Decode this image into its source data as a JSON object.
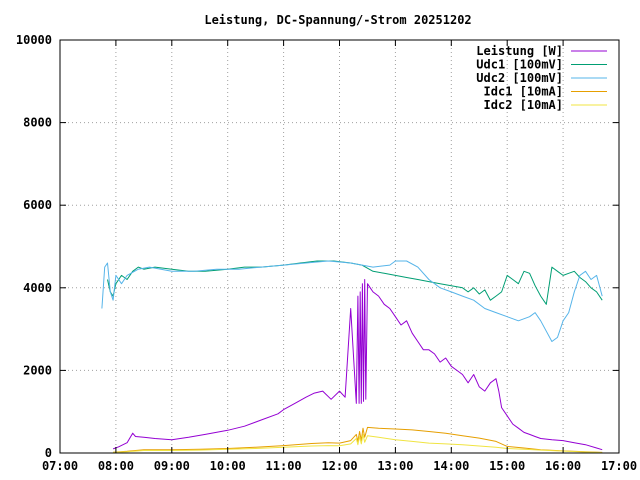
{
  "chart_data": {
    "type": "line",
    "title": "Leistung, DC-Spannung/-Strom 20251202",
    "xlabel": "",
    "ylabel": "",
    "x_unit": "time of day (decimal hours)",
    "xlim": [
      7,
      17
    ],
    "ylim": [
      0,
      10000
    ],
    "x_ticks": [
      7,
      8,
      9,
      10,
      11,
      12,
      13,
      14,
      15,
      16,
      17
    ],
    "x_tick_labels": [
      "07:00",
      "08:00",
      "09:00",
      "10:00",
      "11:00",
      "12:00",
      "13:00",
      "14:00",
      "15:00",
      "16:00",
      "17:00"
    ],
    "y_ticks": [
      0,
      2000,
      4000,
      6000,
      8000,
      10000
    ],
    "y_tick_labels": [
      "0",
      "2000",
      "4000",
      "6000",
      "8000",
      "10000"
    ],
    "grid": true,
    "legend_position": "top-right",
    "series": [
      {
        "name": "Leistung [W]",
        "color": "#9400d3",
        "x": [
          7.95,
          8.05,
          8.2,
          8.3,
          8.35,
          8.5,
          8.7,
          9.0,
          9.3,
          9.6,
          10.0,
          10.3,
          10.6,
          10.9,
          11.0,
          11.2,
          11.4,
          11.55,
          11.7,
          11.85,
          12.0,
          12.1,
          12.2,
          12.3,
          12.33,
          12.35,
          12.37,
          12.39,
          12.41,
          12.43,
          12.45,
          12.47,
          12.5,
          12.55,
          12.6,
          12.7,
          12.8,
          12.9,
          13.0,
          13.1,
          13.2,
          13.3,
          13.4,
          13.5,
          13.6,
          13.7,
          13.8,
          13.9,
          14.0,
          14.1,
          14.2,
          14.3,
          14.4,
          14.5,
          14.6,
          14.7,
          14.8,
          14.85,
          14.9,
          15.0,
          15.1,
          15.2,
          15.3,
          15.4,
          15.5,
          15.6,
          15.8,
          16.0,
          16.2,
          16.4,
          16.6,
          16.7
        ],
        "y": [
          100,
          150,
          250,
          480,
          400,
          380,
          350,
          320,
          380,
          450,
          550,
          650,
          800,
          950,
          1050,
          1200,
          1350,
          1450,
          1500,
          1300,
          1500,
          1350,
          3500,
          1200,
          3800,
          1200,
          3900,
          1200,
          4100,
          1250,
          4200,
          1300,
          4100,
          4000,
          3900,
          3800,
          3600,
          3500,
          3300,
          3100,
          3200,
          2900,
          2700,
          2500,
          2500,
          2400,
          2200,
          2300,
          2100,
          2000,
          1900,
          1700,
          1900,
          1600,
          1500,
          1700,
          1800,
          1500,
          1100,
          900,
          700,
          600,
          500,
          450,
          400,
          350,
          320,
          300,
          250,
          200,
          120,
          80
        ]
      },
      {
        "name": "Udc1 [100mV]",
        "color": "#009e73",
        "x": [
          7.85,
          7.9,
          7.95,
          8.0,
          8.1,
          8.2,
          8.3,
          8.4,
          8.5,
          8.7,
          9.0,
          9.3,
          9.6,
          10.0,
          10.3,
          10.6,
          11.0,
          11.3,
          11.6,
          11.9,
          12.2,
          12.4,
          12.6,
          12.8,
          13.0,
          13.2,
          13.4,
          13.6,
          13.8,
          14.0,
          14.2,
          14.3,
          14.4,
          14.5,
          14.6,
          14.7,
          14.8,
          14.9,
          15.0,
          15.1,
          15.2,
          15.3,
          15.4,
          15.5,
          15.6,
          15.7,
          15.8,
          15.9,
          16.0,
          16.1,
          16.2,
          16.3,
          16.4,
          16.5,
          16.6,
          16.7
        ],
        "y": [
          4200,
          3900,
          3800,
          4100,
          4300,
          4200,
          4400,
          4500,
          4450,
          4500,
          4450,
          4400,
          4400,
          4450,
          4500,
          4500,
          4550,
          4600,
          4650,
          4650,
          4600,
          4550,
          4400,
          4350,
          4300,
          4250,
          4200,
          4150,
          4100,
          4050,
          4000,
          3900,
          4000,
          3850,
          3950,
          3700,
          3800,
          3900,
          4300,
          4200,
          4100,
          4400,
          4350,
          4050,
          3800,
          3600,
          4500,
          4400,
          4300,
          4350,
          4400,
          4250,
          4150,
          4000,
          3900,
          3700
        ]
      },
      {
        "name": "Udc2 [100mV]",
        "color": "#56b4e9",
        "x": [
          7.75,
          7.8,
          7.85,
          7.9,
          7.95,
          8.0,
          8.1,
          8.2,
          8.4,
          8.6,
          9.0,
          9.4,
          9.8,
          10.2,
          10.6,
          11.0,
          11.4,
          11.8,
          12.2,
          12.6,
          12.9,
          13.0,
          13.2,
          13.4,
          13.6,
          13.8,
          14.0,
          14.2,
          14.4,
          14.6,
          14.8,
          15.0,
          15.2,
          15.4,
          15.5,
          15.6,
          15.7,
          15.8,
          15.9,
          16.0,
          16.1,
          16.2,
          16.3,
          16.4,
          16.5,
          16.6,
          16.7
        ],
        "y": [
          3500,
          4500,
          4600,
          3900,
          3700,
          4300,
          4100,
          4300,
          4450,
          4500,
          4400,
          4400,
          4450,
          4450,
          4500,
          4550,
          4600,
          4650,
          4600,
          4500,
          4550,
          4650,
          4650,
          4500,
          4200,
          4000,
          3900,
          3800,
          3700,
          3500,
          3400,
          3300,
          3200,
          3300,
          3400,
          3200,
          2950,
          2700,
          2800,
          3200,
          3400,
          3900,
          4300,
          4400,
          4200,
          4300,
          3800
        ]
      },
      {
        "name": "Idc1 [10mA]",
        "color": "#e69f00",
        "x": [
          7.95,
          8.2,
          8.5,
          9.0,
          9.5,
          10.0,
          10.5,
          11.0,
          11.5,
          11.8,
          12.0,
          12.2,
          12.3,
          12.33,
          12.36,
          12.39,
          12.42,
          12.45,
          12.5,
          12.7,
          13.0,
          13.3,
          13.6,
          13.9,
          14.2,
          14.5,
          14.8,
          15.0,
          15.3,
          15.6,
          16.0,
          16.4,
          16.7
        ],
        "y": [
          20,
          40,
          80,
          80,
          90,
          110,
          140,
          180,
          230,
          250,
          240,
          300,
          450,
          280,
          520,
          300,
          600,
          380,
          620,
          600,
          580,
          560,
          520,
          480,
          420,
          360,
          280,
          160,
          120,
          80,
          50,
          30,
          15
        ]
      },
      {
        "name": "Idc2 [10mA]",
        "color": "#f0e442",
        "x": [
          7.95,
          8.2,
          8.5,
          9.0,
          9.5,
          10.0,
          10.5,
          11.0,
          11.5,
          11.8,
          12.0,
          12.2,
          12.3,
          12.33,
          12.36,
          12.39,
          12.42,
          12.45,
          12.5,
          12.7,
          13.0,
          13.3,
          13.6,
          13.9,
          14.2,
          14.5,
          14.8,
          15.0,
          15.3,
          15.6,
          16.0,
          16.4,
          16.7
        ],
        "y": [
          15,
          30,
          60,
          60,
          70,
          90,
          110,
          140,
          170,
          180,
          175,
          220,
          350,
          200,
          400,
          220,
          450,
          260,
          420,
          380,
          320,
          280,
          240,
          220,
          200,
          170,
          140,
          110,
          90,
          70,
          45,
          25,
          10
        ]
      }
    ]
  }
}
